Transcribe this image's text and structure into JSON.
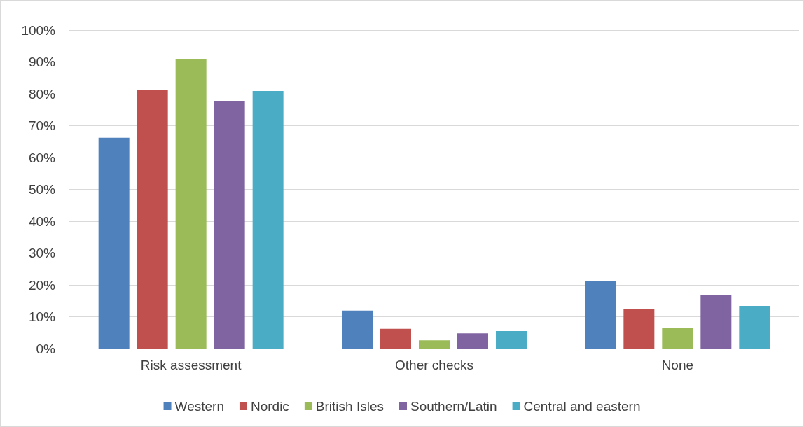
{
  "chart_data": {
    "type": "bar",
    "categories": [
      "Risk assessment",
      "Other checks",
      "None"
    ],
    "series": [
      {
        "name": "Western",
        "color": "#4f81bd",
        "values": [
          66.2,
          11.9,
          21.3
        ]
      },
      {
        "name": "Nordic",
        "color": "#c0504d",
        "values": [
          81.3,
          6.2,
          12.3
        ]
      },
      {
        "name": "British Isles",
        "color": "#9bbb59",
        "values": [
          90.8,
          2.6,
          6.4
        ]
      },
      {
        "name": "Southern/Latin",
        "color": "#8064a2",
        "values": [
          77.8,
          4.8,
          16.9
        ]
      },
      {
        "name": "Central and eastern",
        "color": "#4bacc6",
        "values": [
          80.9,
          5.5,
          13.4
        ]
      }
    ],
    "ylim": [
      0,
      100
    ],
    "yticks": [
      {
        "value": 0,
        "label": "0%"
      },
      {
        "value": 10,
        "label": "10%"
      },
      {
        "value": 20,
        "label": "20%"
      },
      {
        "value": 30,
        "label": "30%"
      },
      {
        "value": 40,
        "label": "40%"
      },
      {
        "value": 50,
        "label": "50%"
      },
      {
        "value": 60,
        "label": "60%"
      },
      {
        "value": 70,
        "label": "70%"
      },
      {
        "value": 80,
        "label": "80%"
      },
      {
        "value": 90,
        "label": "90%"
      },
      {
        "value": 100,
        "label": "100%"
      }
    ],
    "grid": "y",
    "legend": "bottom"
  }
}
